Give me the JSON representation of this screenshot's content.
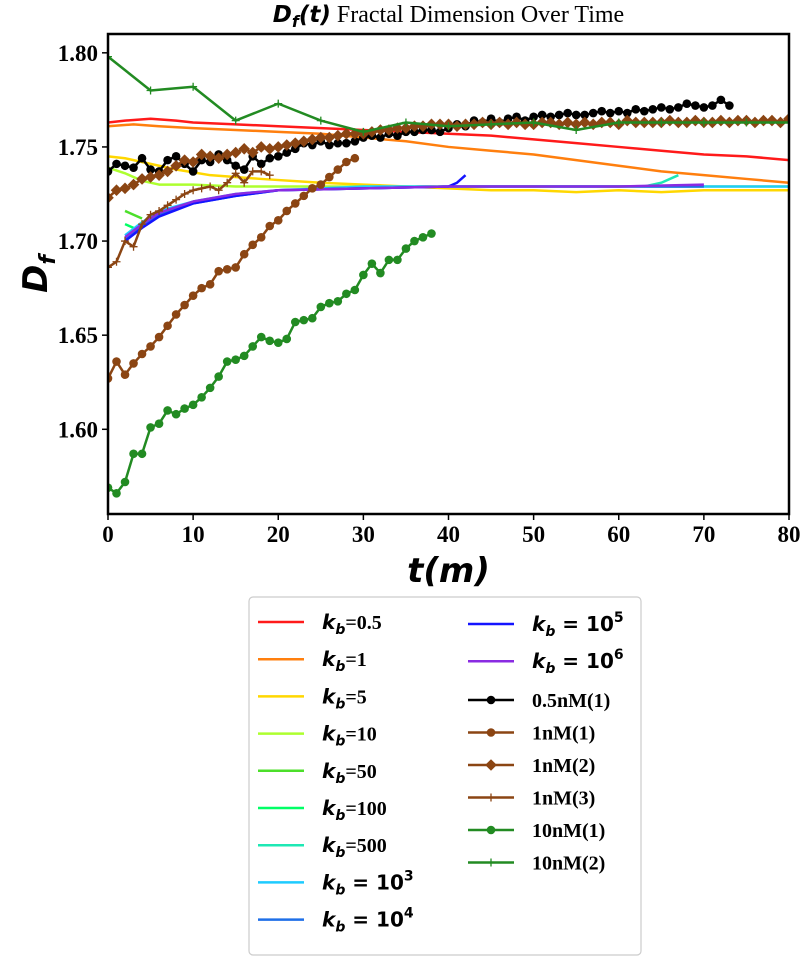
{
  "chart_data": {
    "type": "line",
    "title_math": "D_f(t)",
    "title_text": "Fractal Dimension Over Time",
    "xlabel": "t(m)",
    "ylabel": "D_f",
    "xlim": [
      0,
      80
    ],
    "ylim": [
      1.555,
      1.81
    ],
    "xticks": [
      0,
      10,
      20,
      30,
      40,
      50,
      60,
      70,
      80
    ],
    "yticks": [
      1.6,
      1.65,
      1.7,
      1.75,
      1.8
    ],
    "ytick_labels": [
      "1.60",
      "1.65",
      "1.70",
      "1.75",
      "1.80"
    ],
    "grid": false,
    "legend_position": "below",
    "series": [
      {
        "name": "k_b=0.5",
        "label_main": "k",
        "label_sub": "b",
        "label_rest": "=0.5",
        "label_style": "serif",
        "color": "#ff1a1a",
        "marker": "none",
        "x": [
          0,
          2,
          5,
          8,
          10,
          15,
          20,
          25,
          30,
          35,
          40,
          45,
          50,
          55,
          60,
          65,
          70,
          75,
          80
        ],
        "y": [
          1.763,
          1.764,
          1.765,
          1.764,
          1.763,
          1.762,
          1.761,
          1.76,
          1.759,
          1.758,
          1.757,
          1.756,
          1.754,
          1.752,
          1.75,
          1.748,
          1.746,
          1.745,
          1.743
        ]
      },
      {
        "name": "k_b=1",
        "label_main": "k",
        "label_sub": "b",
        "label_rest": "=1",
        "label_style": "serif",
        "color": "#ff7f0e",
        "marker": "none",
        "x": [
          0,
          3,
          6,
          10,
          15,
          20,
          25,
          30,
          35,
          40,
          45,
          50,
          55,
          60,
          65,
          70,
          75,
          80
        ],
        "y": [
          1.761,
          1.762,
          1.761,
          1.76,
          1.759,
          1.758,
          1.757,
          1.755,
          1.753,
          1.75,
          1.748,
          1.746,
          1.743,
          1.74,
          1.737,
          1.735,
          1.733,
          1.731
        ]
      },
      {
        "name": "k_b=5",
        "label_main": "k",
        "label_sub": "b",
        "label_rest": "=5",
        "label_style": "serif",
        "color": "#ffd700",
        "marker": "none",
        "x": [
          0,
          2,
          5,
          8,
          12,
          18,
          25,
          30,
          35,
          40,
          45,
          50,
          55,
          60,
          65,
          70,
          75,
          80
        ],
        "y": [
          1.745,
          1.744,
          1.741,
          1.738,
          1.735,
          1.733,
          1.731,
          1.73,
          1.729,
          1.728,
          1.727,
          1.727,
          1.726,
          1.727,
          1.726,
          1.727,
          1.727,
          1.727
        ]
      },
      {
        "name": "k_b=10",
        "label_main": "k",
        "label_sub": "b",
        "label_rest": "=10",
        "label_style": "serif",
        "color": "#adff2f",
        "marker": "none",
        "x": [
          0,
          2,
          4,
          6,
          10,
          15,
          20,
          30,
          40,
          50,
          60,
          70,
          80
        ],
        "y": [
          1.739,
          1.736,
          1.732,
          1.73,
          1.73,
          1.729,
          1.729,
          1.729,
          1.729,
          1.729,
          1.729,
          1.729,
          1.729
        ]
      },
      {
        "name": "k_b=50",
        "label_main": "k",
        "label_sub": "b",
        "label_rest": "=50",
        "label_style": "serif",
        "color": "#4cdf2a",
        "marker": "none",
        "x": [
          2,
          3,
          4
        ],
        "y": [
          1.716,
          1.714,
          1.712
        ]
      },
      {
        "name": "k_b=100",
        "label_main": "k",
        "label_sub": "b",
        "label_rest": "=100",
        "label_style": "serif",
        "color": "#00ff66",
        "marker": "none",
        "x": [
          2,
          2.5,
          3
        ],
        "y": [
          1.709,
          1.708,
          1.707
        ]
      },
      {
        "name": "k_b=500",
        "label_main": "k",
        "label_sub": "b",
        "label_rest": "=500",
        "label_style": "serif",
        "color": "#1ee8b4",
        "marker": "none",
        "x": [
          63,
          65,
          67
        ],
        "y": [
          1.729,
          1.731,
          1.735
        ]
      },
      {
        "name": "k_b = 10^3",
        "label_main": "k",
        "label_sub": "b",
        "label_rest": " = 10",
        "label_sup": "3",
        "label_style": "sans",
        "color": "#1ecbff",
        "marker": "none",
        "x": [
          2,
          4,
          6,
          10,
          15,
          20,
          30,
          40,
          50,
          60,
          70,
          80
        ],
        "y": [
          1.703,
          1.71,
          1.716,
          1.721,
          1.725,
          1.727,
          1.729,
          1.729,
          1.729,
          1.729,
          1.729,
          1.729
        ]
      },
      {
        "name": "k_b = 10^4",
        "label_main": "k",
        "label_sub": "b",
        "label_rest": " = 10",
        "label_sup": "4",
        "label_style": "sans",
        "color": "#1f6fe8",
        "marker": "none",
        "x": [
          2,
          4,
          6,
          10,
          15,
          20,
          30,
          40,
          50,
          60,
          70
        ],
        "y": [
          1.701,
          1.708,
          1.714,
          1.72,
          1.724,
          1.727,
          1.728,
          1.729,
          1.729,
          1.729,
          1.729
        ]
      },
      {
        "name": "k_b = 10^5",
        "label_main": "k",
        "label_sub": "b",
        "label_rest": " = 10",
        "label_sup": "5",
        "label_style": "sans",
        "color": "#1414ff",
        "marker": "none",
        "x": [
          2,
          4,
          6,
          10,
          15,
          20,
          30,
          40,
          41,
          42
        ],
        "y": [
          1.7,
          1.707,
          1.713,
          1.72,
          1.724,
          1.727,
          1.728,
          1.729,
          1.731,
          1.735
        ]
      },
      {
        "name": "k_b = 10^6",
        "label_main": "k",
        "label_sub": "b",
        "label_rest": " = 10",
        "label_sup": "6",
        "label_style": "sans",
        "color": "#8a2be2",
        "marker": "none",
        "x": [
          2,
          4,
          6,
          10,
          15,
          20,
          30,
          40,
          50,
          60,
          70
        ],
        "y": [
          1.702,
          1.709,
          1.715,
          1.721,
          1.725,
          1.727,
          1.728,
          1.729,
          1.729,
          1.729,
          1.73
        ]
      },
      {
        "name": "0.5nM(1)",
        "label_rest": "0.5nM(1)",
        "label_style": "serif",
        "color": "#000000",
        "marker": "circle",
        "x": [
          0,
          1,
          2,
          3,
          4,
          5,
          6,
          7,
          8,
          9,
          10,
          11,
          12,
          13,
          14,
          15,
          16,
          17,
          18,
          19,
          20,
          21,
          22,
          23,
          24,
          25,
          26,
          27,
          28,
          29,
          30,
          31,
          32,
          33,
          34,
          35,
          36,
          37,
          38,
          39,
          40,
          41,
          42,
          43,
          44,
          45,
          46,
          47,
          48,
          49,
          50,
          51,
          52,
          53,
          54,
          55,
          56,
          57,
          58,
          59,
          60,
          61,
          62,
          63,
          64,
          65,
          66,
          67,
          68,
          69,
          70,
          71,
          72,
          73
        ],
        "y": [
          1.737,
          1.741,
          1.74,
          1.739,
          1.744,
          1.738,
          1.737,
          1.743,
          1.745,
          1.741,
          1.737,
          1.743,
          1.742,
          1.746,
          1.743,
          1.74,
          1.738,
          1.745,
          1.741,
          1.744,
          1.745,
          1.747,
          1.749,
          1.752,
          1.751,
          1.753,
          1.751,
          1.752,
          1.752,
          1.753,
          1.755,
          1.756,
          1.755,
          1.757,
          1.756,
          1.758,
          1.758,
          1.759,
          1.759,
          1.758,
          1.76,
          1.762,
          1.761,
          1.764,
          1.763,
          1.765,
          1.763,
          1.765,
          1.766,
          1.764,
          1.766,
          1.767,
          1.766,
          1.767,
          1.768,
          1.767,
          1.767,
          1.768,
          1.769,
          1.768,
          1.769,
          1.768,
          1.77,
          1.769,
          1.77,
          1.771,
          1.77,
          1.771,
          1.773,
          1.772,
          1.771,
          1.772,
          1.775,
          1.772
        ]
      },
      {
        "name": "1nM(1)",
        "label_rest": "1nM(1)",
        "label_style": "serif",
        "color": "#8b4513",
        "marker": "circle",
        "x": [
          0,
          1,
          2,
          3,
          4,
          5,
          6,
          7,
          8,
          9,
          10,
          11,
          12,
          13,
          14,
          15,
          16,
          17,
          18,
          19,
          20,
          21,
          22,
          23,
          24,
          25,
          26,
          27,
          28,
          29
        ],
        "y": [
          1.627,
          1.636,
          1.629,
          1.635,
          1.64,
          1.644,
          1.649,
          1.655,
          1.661,
          1.666,
          1.671,
          1.675,
          1.677,
          1.684,
          1.685,
          1.686,
          1.693,
          1.698,
          1.702,
          1.708,
          1.711,
          1.716,
          1.72,
          1.724,
          1.728,
          1.73,
          1.734,
          1.738,
          1.742,
          1.744
        ]
      },
      {
        "name": "1nM(2)",
        "label_rest": "1nM(2)",
        "label_style": "serif",
        "color": "#8b4513",
        "marker": "diamond",
        "x": [
          0,
          1,
          2,
          3,
          4,
          5,
          6,
          7,
          8,
          9,
          10,
          11,
          12,
          13,
          14,
          15,
          16,
          17,
          18,
          19,
          20,
          21,
          22,
          23,
          24,
          25,
          26,
          27,
          28,
          29,
          30,
          31,
          32,
          33,
          34,
          35,
          36,
          37,
          38,
          39,
          40,
          41,
          42,
          43,
          44,
          45,
          46,
          47,
          48,
          49,
          50,
          51,
          52,
          53,
          54,
          55,
          56,
          57,
          58,
          59,
          60,
          61,
          62,
          63,
          64,
          65,
          66,
          67,
          68,
          69,
          70,
          71,
          72,
          73,
          74,
          75,
          76,
          77,
          78,
          79,
          80
        ],
        "y": [
          1.723,
          1.727,
          1.728,
          1.73,
          1.733,
          1.734,
          1.735,
          1.737,
          1.74,
          1.743,
          1.742,
          1.746,
          1.745,
          1.744,
          1.746,
          1.747,
          1.749,
          1.747,
          1.75,
          1.749,
          1.75,
          1.751,
          1.752,
          1.753,
          1.754,
          1.755,
          1.755,
          1.756,
          1.757,
          1.757,
          1.757,
          1.758,
          1.759,
          1.759,
          1.76,
          1.76,
          1.761,
          1.761,
          1.762,
          1.762,
          1.762,
          1.761,
          1.762,
          1.762,
          1.763,
          1.762,
          1.763,
          1.762,
          1.763,
          1.762,
          1.762,
          1.763,
          1.763,
          1.762,
          1.763,
          1.762,
          1.763,
          1.762,
          1.763,
          1.763,
          1.762,
          1.764,
          1.763,
          1.763,
          1.763,
          1.763,
          1.764,
          1.763,
          1.763,
          1.764,
          1.763,
          1.763,
          1.764,
          1.763,
          1.764,
          1.764,
          1.763,
          1.764,
          1.764,
          1.763,
          1.765
        ]
      },
      {
        "name": "1nM(3)",
        "label_rest": "1nM(3)",
        "label_style": "serif",
        "color": "#8b4513",
        "marker": "plus",
        "x": [
          0,
          1,
          2,
          3,
          4,
          5,
          6,
          7,
          8,
          9,
          10,
          11,
          12,
          13,
          14,
          15,
          16,
          17,
          18,
          19
        ],
        "y": [
          1.686,
          1.689,
          1.7,
          1.697,
          1.709,
          1.714,
          1.716,
          1.719,
          1.722,
          1.725,
          1.727,
          1.728,
          1.729,
          1.727,
          1.731,
          1.736,
          1.731,
          1.737,
          1.737,
          1.735
        ]
      },
      {
        "name": "10nM(1)",
        "label_rest": "10nM(1)",
        "label_style": "serif",
        "color": "#228b22",
        "marker": "circle",
        "x": [
          0,
          1,
          2,
          3,
          4,
          5,
          6,
          7,
          8,
          9,
          10,
          11,
          12,
          13,
          14,
          15,
          16,
          17,
          18,
          19,
          20,
          21,
          22,
          23,
          24,
          25,
          26,
          27,
          28,
          29,
          30,
          31,
          32,
          33,
          34,
          35,
          36,
          37,
          38
        ],
        "y": [
          1.569,
          1.566,
          1.572,
          1.587,
          1.587,
          1.601,
          1.603,
          1.61,
          1.608,
          1.611,
          1.613,
          1.617,
          1.622,
          1.628,
          1.636,
          1.637,
          1.639,
          1.644,
          1.649,
          1.647,
          1.646,
          1.648,
          1.657,
          1.658,
          1.659,
          1.665,
          1.667,
          1.668,
          1.672,
          1.674,
          1.682,
          1.688,
          1.683,
          1.69,
          1.69,
          1.696,
          1.7,
          1.702,
          1.704
        ]
      },
      {
        "name": "10nM(2)",
        "label_rest": "10nM(2)",
        "label_style": "serif",
        "color": "#228b22",
        "marker": "plus",
        "x": [
          0,
          5,
          10,
          15,
          20,
          25,
          30,
          35,
          40,
          45,
          50,
          55,
          60,
          65,
          70,
          75,
          80
        ],
        "y": [
          1.798,
          1.78,
          1.782,
          1.764,
          1.773,
          1.764,
          1.758,
          1.763,
          1.761,
          1.762,
          1.763,
          1.759,
          1.763,
          1.763,
          1.763,
          1.763,
          1.763
        ]
      }
    ]
  }
}
